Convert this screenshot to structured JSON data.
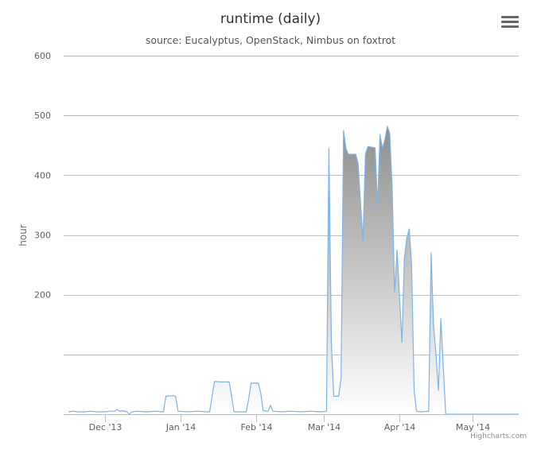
{
  "title": "runtime (daily)",
  "subtitle": "source: Eucalyptus, OpenStack, Nimbus on foxtrot",
  "credits": "Highcharts.com",
  "menu_icon": "hamburger-menu-icon",
  "colors": {
    "line": "#7cb5ec",
    "fill_top": "#888888",
    "fill_bottom": "#ffffff",
    "grid": "#c0c0c0"
  },
  "chart_data": {
    "type": "area",
    "title": "runtime (daily)",
    "subtitle": "source: Eucalyptus, OpenStack, Nimbus on foxtrot",
    "xlabel": "",
    "ylabel": "hour",
    "ylim": [
      0,
      600
    ],
    "y_ticks": [
      {
        "value": 200,
        "label": "200"
      },
      {
        "value": 300,
        "label": "300"
      },
      {
        "value": 400,
        "label": "400"
      },
      {
        "value": 500,
        "label": "500"
      },
      {
        "value": 600,
        "label": "600"
      }
    ],
    "y_gridlines": [
      100,
      200,
      300,
      400,
      500,
      600
    ],
    "x_range": [
      "2013-11-14",
      "2014-05-20"
    ],
    "x_ticks": [
      {
        "date": "2013-12-01",
        "label": "Dec '13"
      },
      {
        "date": "2014-01-01",
        "label": "Jan '14"
      },
      {
        "date": "2014-02-01",
        "label": "Feb '14"
      },
      {
        "date": "2014-03-01",
        "label": "Mar '14"
      },
      {
        "date": "2014-04-01",
        "label": "Apr '14"
      },
      {
        "date": "2014-05-01",
        "label": "May '14"
      }
    ],
    "grid": true,
    "series": [
      {
        "points": [
          [
            "2013-11-16",
            4
          ],
          [
            "2013-11-18",
            5
          ],
          [
            "2013-11-20",
            4
          ],
          [
            "2013-11-23",
            4
          ],
          [
            "2013-11-25",
            5
          ],
          [
            "2013-11-28",
            4
          ],
          [
            "2013-12-01",
            4
          ],
          [
            "2013-12-03",
            5
          ],
          [
            "2013-12-05",
            5
          ],
          [
            "2013-12-06",
            8
          ],
          [
            "2013-12-07",
            5
          ],
          [
            "2013-12-08",
            6
          ],
          [
            "2013-12-10",
            4
          ],
          [
            "2013-12-11",
            0
          ],
          [
            "2013-12-12",
            4
          ],
          [
            "2013-12-14",
            5
          ],
          [
            "2013-12-18",
            4
          ],
          [
            "2013-12-22",
            5
          ],
          [
            "2013-12-25",
            4
          ],
          [
            "2013-12-26",
            30
          ],
          [
            "2013-12-29",
            31
          ],
          [
            "2013-12-30",
            30
          ],
          [
            "2013-12-31",
            5
          ],
          [
            "2014-01-04",
            4
          ],
          [
            "2014-01-08",
            5
          ],
          [
            "2014-01-12",
            4
          ],
          [
            "2014-01-13",
            4
          ],
          [
            "2014-01-14",
            30
          ],
          [
            "2014-01-15",
            55
          ],
          [
            "2014-01-17",
            54
          ],
          [
            "2014-01-21",
            54
          ],
          [
            "2014-01-22",
            30
          ],
          [
            "2014-01-23",
            4
          ],
          [
            "2014-01-28",
            4
          ],
          [
            "2014-01-29",
            25
          ],
          [
            "2014-01-30",
            52
          ],
          [
            "2014-02-02",
            52
          ],
          [
            "2014-02-03",
            35
          ],
          [
            "2014-02-04",
            6
          ],
          [
            "2014-02-06",
            5
          ],
          [
            "2014-02-07",
            15
          ],
          [
            "2014-02-08",
            5
          ],
          [
            "2014-02-12",
            4
          ],
          [
            "2014-02-15",
            5
          ],
          [
            "2014-02-20",
            4
          ],
          [
            "2014-02-23",
            5
          ],
          [
            "2014-02-28",
            4
          ],
          [
            "2014-03-02",
            5
          ],
          [
            "2014-03-03",
            445
          ],
          [
            "2014-03-04",
            120
          ],
          [
            "2014-03-05",
            30
          ],
          [
            "2014-03-07",
            30
          ],
          [
            "2014-03-08",
            60
          ],
          [
            "2014-03-09",
            475
          ],
          [
            "2014-03-10",
            445
          ],
          [
            "2014-03-11",
            435
          ],
          [
            "2014-03-14",
            435
          ],
          [
            "2014-03-15",
            420
          ],
          [
            "2014-03-17",
            290
          ],
          [
            "2014-03-18",
            435
          ],
          [
            "2014-03-19",
            448
          ],
          [
            "2014-03-22",
            446
          ],
          [
            "2014-03-23",
            350
          ],
          [
            "2014-03-24",
            468
          ],
          [
            "2014-03-25",
            445
          ],
          [
            "2014-03-26",
            460
          ],
          [
            "2014-03-27",
            482
          ],
          [
            "2014-03-28",
            470
          ],
          [
            "2014-03-29",
            380
          ],
          [
            "2014-03-30",
            205
          ],
          [
            "2014-03-31",
            275
          ],
          [
            "2014-04-01",
            200
          ],
          [
            "2014-04-02",
            120
          ],
          [
            "2014-04-03",
            260
          ],
          [
            "2014-04-04",
            295
          ],
          [
            "2014-04-05",
            310
          ],
          [
            "2014-04-06",
            250
          ],
          [
            "2014-04-07",
            40
          ],
          [
            "2014-04-08",
            5
          ],
          [
            "2014-04-10",
            4
          ],
          [
            "2014-04-13",
            5
          ],
          [
            "2014-04-14",
            270
          ],
          [
            "2014-04-15",
            150
          ],
          [
            "2014-04-16",
            100
          ],
          [
            "2014-04-17",
            40
          ],
          [
            "2014-04-18",
            160
          ],
          [
            "2014-04-19",
            80
          ],
          [
            "2014-04-20",
            0
          ],
          [
            "2014-04-23",
            0
          ],
          [
            "2014-04-26",
            0
          ],
          [
            "2014-04-30",
            0
          ],
          [
            "2014-05-05",
            0
          ],
          [
            "2014-05-10",
            0
          ],
          [
            "2014-05-15",
            0
          ],
          [
            "2014-05-20",
            0
          ]
        ]
      }
    ]
  }
}
